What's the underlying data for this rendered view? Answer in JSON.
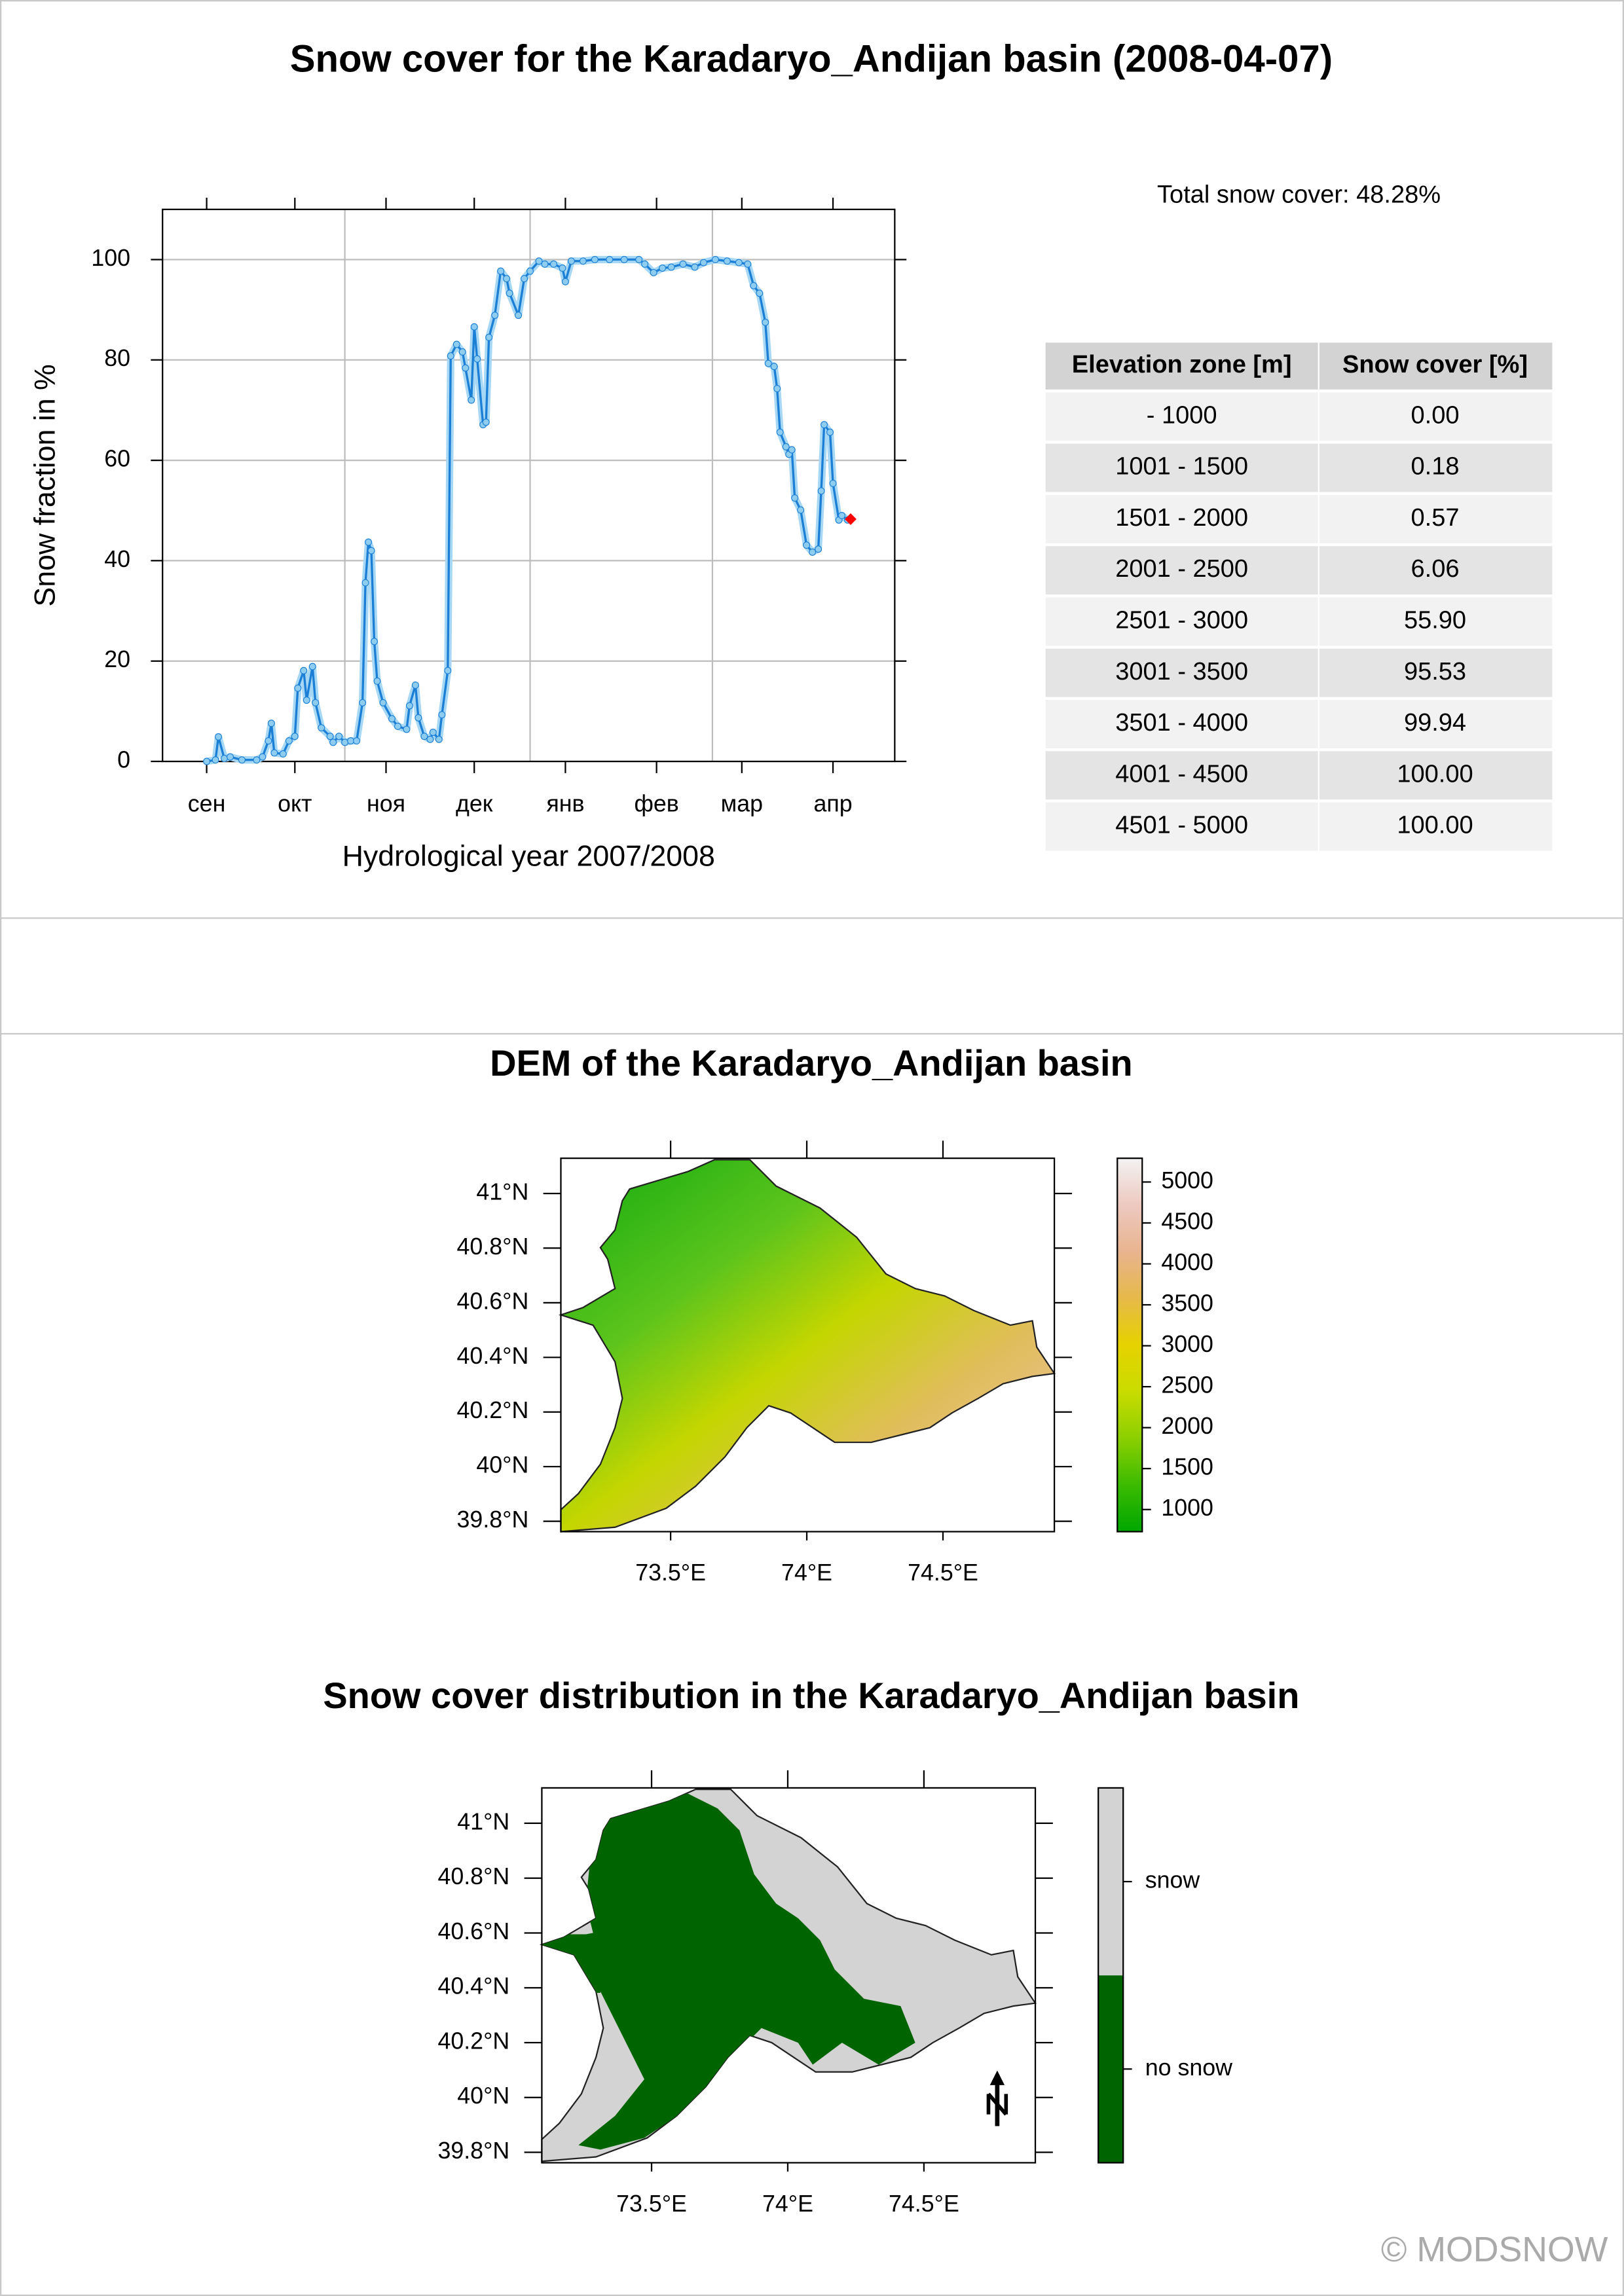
{
  "title": "Snow cover for the Karadaryo_Andijan basin (2008-04-07)",
  "total_snow_cover": "Total snow cover: 48.28%",
  "table": {
    "header": [
      "Elevation zone [m]",
      "Snow cover [%]"
    ],
    "rows": [
      [
        "- 1000",
        "0.00"
      ],
      [
        "1001 - 1500",
        "0.18"
      ],
      [
        "1501 - 2000",
        "0.57"
      ],
      [
        "2001 - 2500",
        "6.06"
      ],
      [
        "2501 - 3000",
        "55.90"
      ],
      [
        "3001 - 3500",
        "95.53"
      ],
      [
        "3501 - 4000",
        "99.94"
      ],
      [
        "4001 - 4500",
        "100.00"
      ],
      [
        "4501 - 5000",
        "100.00"
      ]
    ]
  },
  "copyright": "© MODSNOW",
  "chart_data": [
    {
      "type": "line",
      "x_label": "Hydrological year 2007/2008",
      "y_label": "Snow fraction in %",
      "xlim": [
        -15,
        234
      ],
      "ylim": [
        0,
        110
      ],
      "xticks": [
        {
          "value": 0,
          "label": "сен"
        },
        {
          "value": 30,
          "label": "окт"
        },
        {
          "value": 61,
          "label": "ноя"
        },
        {
          "value": 91,
          "label": "дек"
        },
        {
          "value": 122,
          "label": "янв"
        },
        {
          "value": 153,
          "label": "фев"
        },
        {
          "value": 182,
          "label": "мар"
        },
        {
          "value": 213,
          "label": "апр"
        }
      ],
      "yticks": [
        0,
        20,
        40,
        60,
        80,
        100
      ],
      "xgrid": [
        47,
        110,
        172
      ],
      "grid": true,
      "series": [
        {
          "color": "#1c7fd6",
          "x": [
            0,
            3,
            4,
            6,
            8,
            12,
            17,
            19,
            21,
            22,
            23,
            26,
            28,
            30,
            31,
            33,
            34,
            36,
            37,
            39,
            42,
            43,
            45,
            47,
            49,
            51,
            53,
            54,
            55,
            56,
            57,
            58,
            60,
            63,
            65,
            68,
            69,
            71,
            72,
            74,
            76,
            77,
            79,
            80,
            82,
            83,
            85,
            87,
            88,
            90,
            91,
            92,
            94,
            95,
            96,
            98,
            100,
            102,
            103,
            106,
            108,
            110,
            113,
            115,
            118,
            121,
            122,
            124,
            128,
            132,
            137,
            142,
            147,
            149,
            152,
            155,
            158,
            162,
            166,
            169,
            173,
            177,
            181,
            184,
            186,
            188,
            190,
            191,
            193,
            194,
            195,
            197,
            198,
            199,
            200,
            202,
            204,
            206,
            208,
            209,
            210,
            212,
            213,
            215,
            216,
            218
          ],
          "values": [
            0,
            0.3,
            4.9,
            0.6,
            0.9,
            0.3,
            0.3,
            0.9,
            4.1,
            7.6,
            1.7,
            1.5,
            4.1,
            5,
            14.6,
            18.1,
            12.2,
            18.9,
            11.7,
            6.7,
            5,
            3.8,
            5,
            3.8,
            4.1,
            4.1,
            11.7,
            35.6,
            43.7,
            42,
            23.9,
            16,
            11.7,
            8.5,
            7,
            6.4,
            11.1,
            15.2,
            8.7,
            5,
            4.4,
            5.8,
            4.4,
            9.3,
            18.1,
            80.8,
            83.1,
            81.6,
            78.4,
            72,
            86.6,
            80.2,
            67.1,
            67.6,
            84.5,
            88.9,
            97.7,
            96.2,
            93.3,
            88.9,
            96.2,
            97.7,
            99.7,
            99.1,
            99.1,
            98.3,
            95.6,
            99.7,
            99.7,
            100,
            100,
            100,
            100,
            99.1,
            97.4,
            98.3,
            98.5,
            99.1,
            98.5,
            99.4,
            100,
            99.7,
            99.4,
            99.1,
            94.8,
            93.3,
            87.5,
            79.3,
            78.7,
            74.3,
            65.6,
            62.7,
            61.2,
            62.1,
            52.5,
            50.1,
            43.1,
            41.7,
            42.3,
            53.9,
            67.1,
            65.6,
            55.4,
            48.1,
            49,
            48.1
          ]
        },
        {
          "color": "#ff0000",
          "x": [
            219
          ],
          "values": [
            48.28
          ]
        }
      ]
    },
    {
      "type": "map",
      "title": "DEM of the Karadaryo_Andijan basin",
      "xlim": [
        73.097,
        74.909
      ],
      "ylim": [
        39.762,
        41.129
      ],
      "xticks": [
        {
          "value": 73.5,
          "label": "73.5°E"
        },
        {
          "value": 74,
          "label": "74°E"
        },
        {
          "value": 74.5,
          "label": "74.5°E"
        }
      ],
      "yticks": [
        {
          "value": 39.8,
          "label": "39.8°N"
        },
        {
          "value": 40,
          "label": "40°N"
        },
        {
          "value": 40.2,
          "label": "40.2°N"
        },
        {
          "value": 40.4,
          "label": "40.4°N"
        },
        {
          "value": 40.6,
          "label": "40.6°N"
        },
        {
          "value": 40.8,
          "label": "40.8°N"
        },
        {
          "value": 41,
          "label": "41°N"
        }
      ],
      "colorbar": {
        "lim": [
          730,
          5290
        ],
        "ticks": [
          1000,
          1500,
          2000,
          2500,
          3000,
          3500,
          4000,
          4500,
          5000
        ],
        "colors": [
          "#00a600",
          "#3cbb00",
          "#8ccf00",
          "#c9dc00",
          "#e6d200",
          "#e6b94a",
          "#e9b48f",
          "#edc9c0",
          "#f2f2f2"
        ]
      }
    },
    {
      "type": "map",
      "title": "Snow cover distribution in the Karadaryo_Andijan basin",
      "xlim": [
        73.097,
        74.909
      ],
      "ylim": [
        39.762,
        41.129
      ],
      "xticks": [
        {
          "value": 73.5,
          "label": "73.5°E"
        },
        {
          "value": 74,
          "label": "74°E"
        },
        {
          "value": 74.5,
          "label": "74.5°E"
        }
      ],
      "yticks": [
        {
          "value": 39.8,
          "label": "39.8°N"
        },
        {
          "value": 40,
          "label": "40°N"
        },
        {
          "value": 40.2,
          "label": "40.2°N"
        },
        {
          "value": 40.4,
          "label": "40.4°N"
        },
        {
          "value": 40.6,
          "label": "40.6°N"
        },
        {
          "value": 40.8,
          "label": "40.8°N"
        },
        {
          "value": 41,
          "label": "41°N"
        }
      ],
      "legend": [
        {
          "name": "no snow",
          "color": "#006400"
        },
        {
          "name": "snow",
          "color": "#d3d3d3"
        }
      ]
    }
  ]
}
